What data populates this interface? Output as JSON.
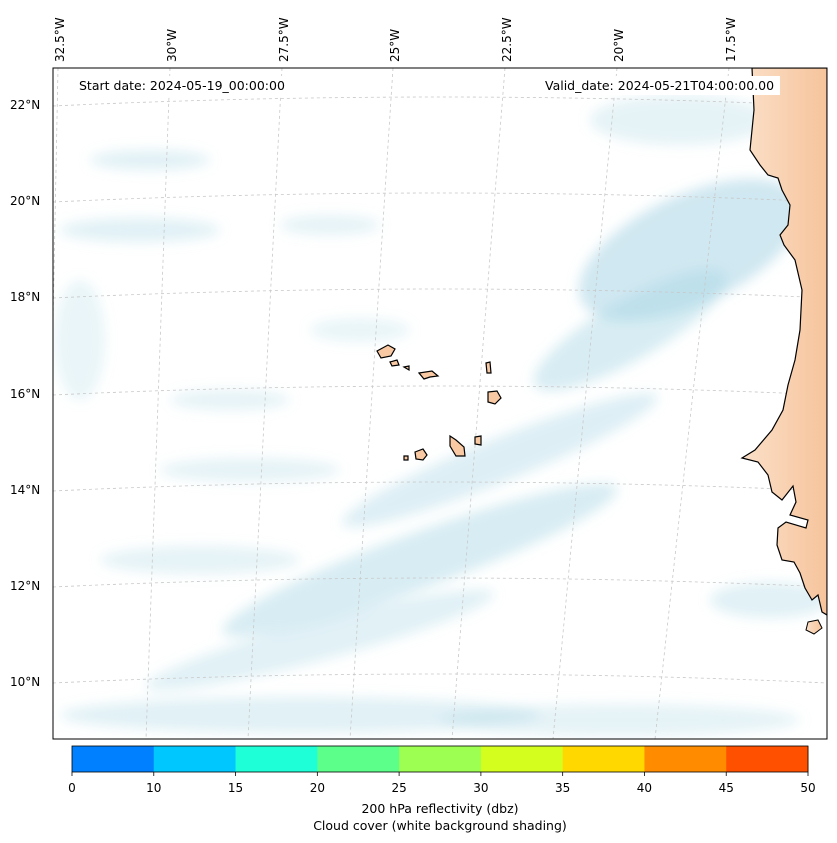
{
  "map": {
    "start_date_text": "Start date: 2024-05-19_00:00:00",
    "valid_date_text": "Valid_date: 2024-05-21T04:00:00.00",
    "lon_labels": [
      "32.5°W",
      "30°W",
      "27.5°W",
      "25°W",
      "22.5°W",
      "20°W",
      "17.5°W"
    ],
    "lat_labels": [
      "22°N",
      "20°N",
      "18°N",
      "16°N",
      "14°N",
      "12°N",
      "10°N"
    ],
    "land_color": "#f8c9a3",
    "cloud_color": "#a9d6e5"
  },
  "colorbar": {
    "ticks": [
      "0",
      "10",
      "15",
      "20",
      "25",
      "30",
      "35",
      "40",
      "45",
      "50"
    ],
    "colors": [
      "#0080ff",
      "#00c8ff",
      "#1effd8",
      "#5cff8a",
      "#9cff52",
      "#d4ff1e",
      "#ffd800",
      "#ff8c00",
      "#ff5000"
    ],
    "label": "200 hPa reflectivity (dbz)",
    "sublabel": "Cloud cover (white background shading)"
  }
}
